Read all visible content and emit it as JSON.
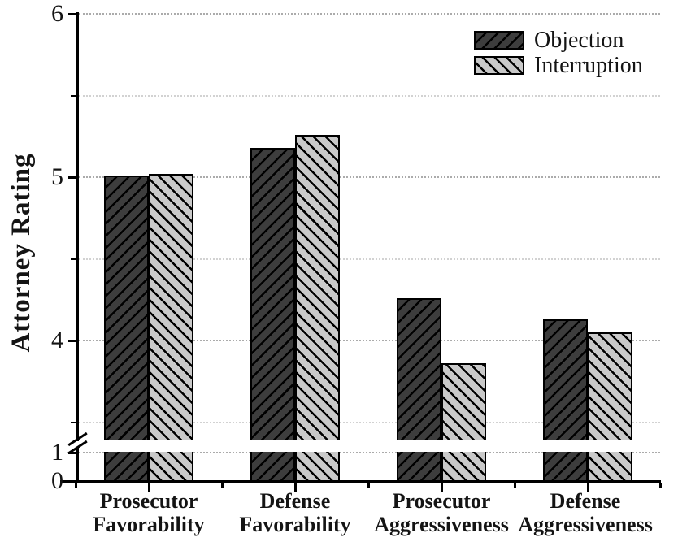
{
  "chart_data": {
    "type": "bar",
    "title": "",
    "ylabel": "Attorney Rating",
    "xlabel": "",
    "categories": [
      {
        "line1": "Prosecutor",
        "line2": "Favorability"
      },
      {
        "line1": "Defense",
        "line2": "Favorability"
      },
      {
        "line1": "Prosecutor",
        "line2": "Aggressiveness"
      },
      {
        "line1": "Defense",
        "line2": "Aggressiveness"
      }
    ],
    "series": [
      {
        "name": "Objection",
        "fill": "#3d3d3d",
        "hatch": "/",
        "values": [
          5.01,
          5.18,
          4.26,
          4.13
        ]
      },
      {
        "name": "Interruption",
        "fill": "#c9c9c9",
        "hatch": "\\",
        "values": [
          5.02,
          5.26,
          3.86,
          4.05
        ]
      }
    ],
    "yaxis": {
      "major_ticks": [
        6,
        5,
        4,
        1,
        0
      ],
      "minor_ticks": [
        5.5,
        4.5,
        3.5
      ],
      "axis_break_between": [
        1,
        3.4
      ],
      "range_shown": [
        0,
        6
      ]
    },
    "gridlines": [
      6,
      5.5,
      5,
      4.5,
      4,
      3.5,
      1
    ],
    "grid": "dotted horizontal",
    "legend_position": "top-right"
  },
  "colors": {
    "background": "#ffffff",
    "axis": "#000000",
    "hatch_line": "#000000",
    "bar_dark": "#3d3d3d",
    "bar_light": "#c9c9c9",
    "gridline_major": "#ababab",
    "gridline_minor": "#d2d2d2",
    "text": "#141414"
  }
}
